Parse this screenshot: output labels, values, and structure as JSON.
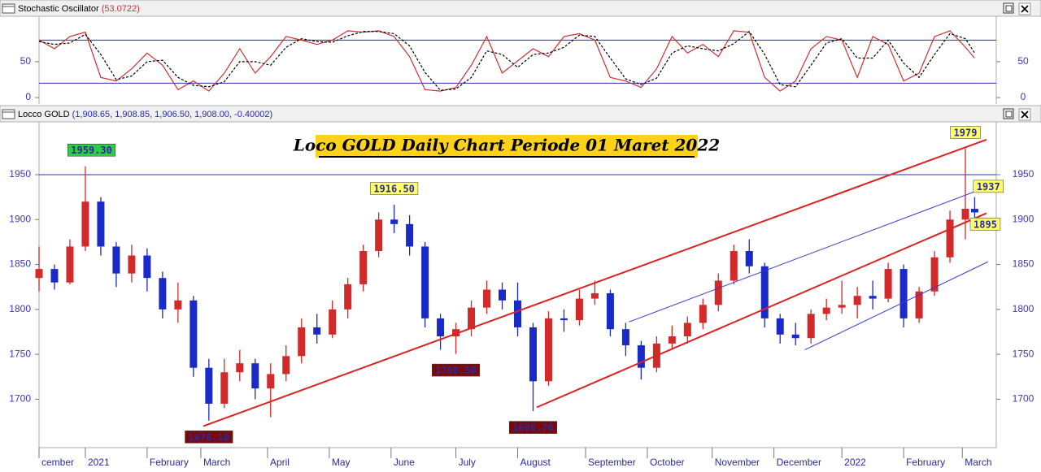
{
  "chart_data": [
    {
      "type": "line",
      "title": "Stochastic Oscillator",
      "subtitle": "(53.0722)",
      "x": [
        0,
        5,
        10,
        15,
        20,
        25,
        30,
        35,
        40,
        45,
        50,
        55,
        60,
        65,
        70,
        75,
        80,
        85,
        90,
        95,
        100,
        105,
        110,
        115,
        120,
        125,
        130,
        135,
        140,
        145,
        150,
        155,
        160,
        165,
        170,
        175,
        180,
        185,
        190,
        195,
        200,
        205,
        210,
        215,
        220,
        225,
        230,
        235,
        240,
        245,
        250,
        255,
        260,
        265,
        270,
        275,
        280,
        285,
        290,
        295,
        300,
        303
      ],
      "series": [
        {
          "color": "#d03030",
          "dashed": false,
          "values": [
            80,
            68,
            85,
            91,
            28,
            23,
            40,
            62,
            45,
            11,
            23,
            9,
            34,
            68,
            34,
            57,
            85,
            80,
            74,
            80,
            93,
            91,
            93,
            85,
            57,
            11,
            9,
            14,
            45,
            85,
            34,
            51,
            68,
            57,
            85,
            89,
            80,
            28,
            23,
            14,
            40,
            85,
            62,
            74,
            57,
            93,
            91,
            28,
            9,
            23,
            68,
            85,
            80,
            28,
            85,
            74,
            23,
            34,
            85,
            93,
            70,
            55
          ]
        },
        {
          "color": "#000000",
          "dashed": true,
          "values": [
            78,
            74,
            76,
            88,
            60,
            25,
            30,
            50,
            52,
            28,
            17,
            15,
            22,
            50,
            50,
            45,
            70,
            82,
            78,
            77,
            86,
            92,
            92,
            89,
            72,
            35,
            10,
            12,
            28,
            65,
            60,
            42,
            60,
            62,
            70,
            87,
            85,
            55,
            26,
            18,
            27,
            62,
            72,
            68,
            65,
            75,
            92,
            60,
            18,
            15,
            45,
            76,
            82,
            55,
            55,
            80,
            48,
            28,
            60,
            89,
            82,
            62
          ]
        }
      ],
      "xlim": [
        0,
        310
      ],
      "ylim": [
        -9,
        111
      ],
      "yticks": [
        0,
        50
      ],
      "hlines": [
        80,
        20
      ],
      "hline_color": "#2a2ab0"
    },
    {
      "type": "candlestick",
      "title": "Locco GOLD",
      "subtitle": "(1,908.65, 1,908.85, 1,906.50, 1,908.00, -0.40002)",
      "annotation": "Loco GOLD Daily Chart Periode 01 Maret 2022",
      "x": [
        0,
        5,
        10,
        15,
        20,
        25,
        30,
        35,
        40,
        45,
        50,
        55,
        60,
        65,
        70,
        75,
        80,
        85,
        90,
        95,
        100,
        105,
        110,
        115,
        120,
        125,
        130,
        135,
        140,
        145,
        150,
        155,
        160,
        165,
        170,
        175,
        180,
        185,
        190,
        195,
        200,
        205,
        210,
        215,
        220,
        225,
        230,
        235,
        240,
        245,
        250,
        255,
        260,
        265,
        270,
        275,
        280,
        285,
        290,
        295,
        300,
        303
      ],
      "open": [
        1835,
        1845,
        1830,
        1870,
        1920,
        1870,
        1840,
        1860,
        1835,
        1800,
        1810,
        1735,
        1695,
        1730,
        1740,
        1712,
        1728,
        1748,
        1780,
        1772,
        1800,
        1828,
        1865,
        1900,
        1895,
        1870,
        1790,
        1770,
        1778,
        1802,
        1822,
        1810,
        1780,
        1720,
        1790,
        1788,
        1812,
        1818,
        1778,
        1760,
        1735,
        1762,
        1770,
        1785,
        1805,
        1832,
        1865,
        1848,
        1790,
        1772,
        1768,
        1795,
        1802,
        1805,
        1815,
        1812,
        1845,
        1790,
        1820,
        1858,
        1900,
        1912
      ],
      "high": [
        1870,
        1850,
        1878,
        1959.3,
        1925,
        1875,
        1872,
        1868,
        1842,
        1830,
        1815,
        1745,
        1745,
        1755,
        1745,
        1740,
        1760,
        1790,
        1795,
        1810,
        1835,
        1872,
        1908,
        1916.5,
        1905,
        1875,
        1795,
        1785,
        1810,
        1832,
        1830,
        1830,
        1785,
        1798,
        1800,
        1822,
        1832,
        1822,
        1785,
        1765,
        1770,
        1782,
        1792,
        1812,
        1840,
        1872,
        1878,
        1852,
        1795,
        1785,
        1800,
        1812,
        1832,
        1825,
        1832,
        1852,
        1850,
        1825,
        1865,
        1910,
        1979,
        1925
      ],
      "low": [
        1820,
        1822,
        1828,
        1865,
        1860,
        1825,
        1830,
        1820,
        1790,
        1785,
        1725,
        1676.1,
        1690,
        1720,
        1700,
        1680,
        1720,
        1740,
        1762,
        1768,
        1790,
        1820,
        1858,
        1885,
        1860,
        1780,
        1755,
        1750.5,
        1770,
        1795,
        1800,
        1770,
        1686.7,
        1715,
        1775,
        1782,
        1805,
        1770,
        1748,
        1722,
        1730,
        1755,
        1762,
        1778,
        1798,
        1828,
        1840,
        1780,
        1762,
        1760,
        1762,
        1788,
        1795,
        1790,
        1800,
        1808,
        1780,
        1785,
        1815,
        1852,
        1878,
        1898
      ],
      "close": [
        1845,
        1830,
        1870,
        1920,
        1870,
        1840,
        1860,
        1835,
        1800,
        1810,
        1735,
        1695,
        1730,
        1740,
        1712,
        1728,
        1748,
        1780,
        1772,
        1800,
        1828,
        1865,
        1900,
        1895,
        1870,
        1790,
        1770,
        1778,
        1802,
        1822,
        1810,
        1780,
        1720,
        1790,
        1788,
        1812,
        1818,
        1778,
        1760,
        1735,
        1762,
        1770,
        1785,
        1805,
        1832,
        1865,
        1848,
        1790,
        1772,
        1768,
        1795,
        1802,
        1805,
        1815,
        1812,
        1845,
        1790,
        1820,
        1858,
        1900,
        1912,
        1908
      ],
      "up_color": "#d02a2a",
      "down_color": "#1a2ac8",
      "xlim": [
        0,
        310
      ],
      "ylim": [
        1647,
        2007
      ],
      "yticks": [
        1700,
        1750,
        1800,
        1850,
        1900,
        1950
      ],
      "xticks": [
        {
          "value": 0,
          "label": "cember"
        },
        {
          "value": 15,
          "label": "2021"
        },
        {
          "value": 35,
          "label": "February"
        },
        {
          "value": 52.4,
          "label": "March"
        },
        {
          "value": 74,
          "label": "April"
        },
        {
          "value": 94,
          "label": "May"
        },
        {
          "value": 114,
          "label": "June"
        },
        {
          "value": 135,
          "label": "July"
        },
        {
          "value": 155,
          "label": "August"
        },
        {
          "value": 177,
          "label": "September"
        },
        {
          "value": 197,
          "label": "October"
        },
        {
          "value": 218,
          "label": "November"
        },
        {
          "value": 238,
          "label": "December"
        },
        {
          "value": 260,
          "label": "2022"
        },
        {
          "value": 280,
          "label": "February"
        },
        {
          "value": 299,
          "label": "March"
        }
      ],
      "hlines": [
        1950
      ],
      "hline_color": "#2a2ab0",
      "trendlines": [
        {
          "color": "#dd2222",
          "width": 2,
          "points": [
            [
              53.2,
              1670
            ],
            [
              306.8,
              1989
            ]
          ]
        },
        {
          "color": "#dd2222",
          "width": 2,
          "points": [
            [
              161.2,
              1691
            ],
            [
              306.8,
              1907
            ]
          ]
        },
        {
          "color": "#3a3ad0",
          "width": 1,
          "points": [
            [
              191,
              1786
            ],
            [
              306.8,
              1936
            ]
          ]
        },
        {
          "color": "#3a3ad0",
          "width": 1,
          "points": [
            [
              248,
              1755
            ],
            [
              307.3,
              1853
            ]
          ]
        }
      ],
      "labels": [
        {
          "x": 17,
          "value": 1959.3,
          "label": "1959.30",
          "position": "above",
          "color": "#2ecc40",
          "text_color": "#ffffff"
        },
        {
          "x": 115,
          "value": 1916.5,
          "label": "1916.50",
          "position": "above",
          "color": "#ffff66",
          "text_color": "#000000"
        },
        {
          "x": 55,
          "value": 1676.1,
          "label": "1676.10",
          "position": "below",
          "color": "#7a0a0a",
          "text_color": "#ffffff"
        },
        {
          "x": 135,
          "value": 1750.5,
          "label": "1750.50",
          "position": "below",
          "color": "#7a0a0a",
          "text_color": "#ffffff"
        },
        {
          "x": 160,
          "value": 1686.7,
          "label": "1686.70",
          "position": "below",
          "color": "#7a0a0a",
          "text_color": "#ffffff"
        },
        {
          "x": 300,
          "value": 1979,
          "label": "1979",
          "position": "above",
          "color": "#ffff66",
          "text_color": "#000000"
        },
        {
          "x": 301,
          "value": 1937,
          "label": "1937",
          "position": "right",
          "color": "#ffff66",
          "text_color": "#000000"
        },
        {
          "x": 300,
          "value": 1895,
          "label": "1895",
          "position": "right",
          "color": "#ffff66",
          "text_color": "#000000"
        }
      ]
    }
  ]
}
